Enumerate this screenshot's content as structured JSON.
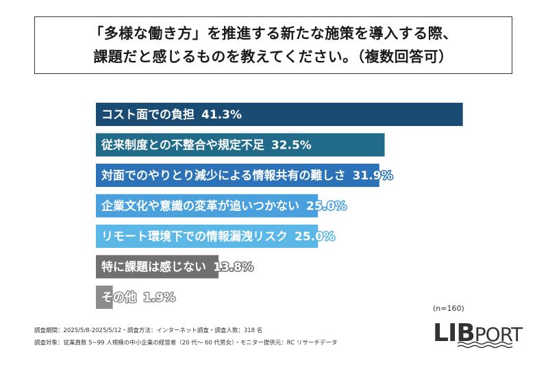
{
  "title": {
    "line1": "「多様な働き方」を推進する新たな施策を導入する際、",
    "line2": "課題だと感じるものを教えてください。（複数回答可）"
  },
  "chart_data": {
    "type": "bar",
    "orientation": "horizontal",
    "categories": [
      "コスト面での負担",
      "従来制度との不整合や規定不足",
      "対面でのやりとり減少による情報共有の難しさ",
      "企業文化や意識の変革が追いつかない",
      "リモート環境下での情報漏洩リスク",
      "特に課題は感じない",
      "その他"
    ],
    "values": [
      41.3,
      32.5,
      31.9,
      25.0,
      25.0,
      13.8,
      1.9
    ],
    "value_labels": [
      "41.3%",
      "32.5%",
      "31.9%",
      "25.0%",
      "25.0%",
      "13.8%",
      "1.9%"
    ],
    "colors": [
      "#1a4c73",
      "#206a8a",
      "#2c72b8",
      "#4aa0dc",
      "#5ab7e6",
      "#707070",
      "#8c8c8c"
    ],
    "xlim": [
      0,
      100
    ]
  },
  "sample": "(n=160)",
  "footer": {
    "line1": "調査期間：2025/5/8-2025/5/12・調査方法：インターネット調査・調査人数：318 名",
    "line2": "調査対象：従業員数 5~99 人規模の中小企業の経営者（20 代～ 60 代男女）・モニター提供元：RC リサーチデータ"
  },
  "logo": {
    "part1": "LIB",
    "part2": "PORT"
  }
}
